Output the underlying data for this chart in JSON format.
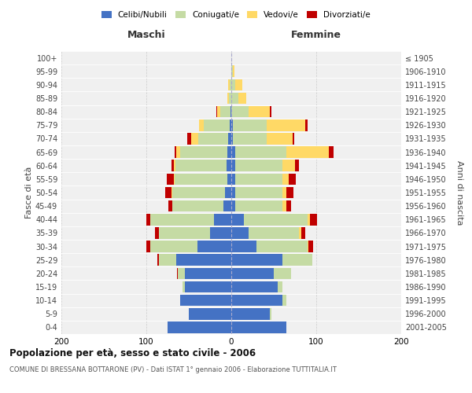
{
  "age_groups": [
    "0-4",
    "5-9",
    "10-14",
    "15-19",
    "20-24",
    "25-29",
    "30-34",
    "35-39",
    "40-44",
    "45-49",
    "50-54",
    "55-59",
    "60-64",
    "65-69",
    "70-74",
    "75-79",
    "80-84",
    "85-89",
    "90-94",
    "95-99",
    "100+"
  ],
  "birth_years": [
    "2001-2005",
    "1996-2000",
    "1991-1995",
    "1986-1990",
    "1981-1985",
    "1976-1980",
    "1971-1975",
    "1966-1970",
    "1961-1965",
    "1956-1960",
    "1951-1955",
    "1946-1950",
    "1941-1945",
    "1936-1940",
    "1931-1935",
    "1926-1930",
    "1921-1925",
    "1916-1920",
    "1911-1915",
    "1906-1910",
    "≤ 1905"
  ],
  "male": {
    "celibi": [
      75,
      50,
      60,
      55,
      55,
      65,
      40,
      25,
      20,
      9,
      7,
      5,
      6,
      5,
      4,
      2,
      1,
      0,
      0,
      0,
      0
    ],
    "coniugati": [
      0,
      0,
      0,
      2,
      8,
      20,
      55,
      60,
      75,
      60,
      62,
      62,
      60,
      55,
      35,
      30,
      12,
      3,
      2,
      0,
      0
    ],
    "vedovi": [
      0,
      0,
      0,
      0,
      0,
      0,
      0,
      0,
      0,
      0,
      1,
      1,
      2,
      5,
      8,
      6,
      4,
      2,
      2,
      0,
      0
    ],
    "divorziati": [
      0,
      0,
      0,
      0,
      1,
      2,
      5,
      5,
      5,
      5,
      8,
      8,
      2,
      2,
      5,
      0,
      1,
      0,
      0,
      0,
      0
    ]
  },
  "female": {
    "nubili": [
      65,
      45,
      60,
      55,
      50,
      60,
      30,
      20,
      15,
      5,
      5,
      5,
      5,
      5,
      2,
      2,
      0,
      0,
      0,
      0,
      0
    ],
    "coniugate": [
      0,
      2,
      5,
      5,
      20,
      35,
      60,
      60,
      75,
      55,
      55,
      55,
      55,
      60,
      40,
      40,
      20,
      8,
      5,
      2,
      0
    ],
    "vedove": [
      0,
      0,
      0,
      0,
      0,
      0,
      1,
      2,
      3,
      5,
      5,
      8,
      15,
      50,
      30,
      45,
      25,
      10,
      8,
      2,
      0
    ],
    "divorziate": [
      0,
      0,
      0,
      0,
      0,
      0,
      5,
      5,
      8,
      5,
      8,
      8,
      5,
      5,
      2,
      3,
      2,
      0,
      0,
      0,
      0
    ]
  },
  "colors": {
    "celibi_nubili": "#4472C4",
    "coniugati": "#C5DBA4",
    "vedovi": "#FFD966",
    "divorziati": "#C00000"
  },
  "xlim": 200,
  "title": "Popolazione per età, sesso e stato civile - 2006",
  "subtitle": "COMUNE DI BRESSANA BOTTARONE (PV) - Dati ISTAT 1° gennaio 2006 - Elaborazione TUTTITALIA.IT",
  "ylabel_left": "Fasce di età",
  "ylabel_right": "Anni di nascita",
  "xlabel_left": "Maschi",
  "xlabel_right": "Femmine",
  "bg_color": "#f0f0f0",
  "legend_labels": [
    "Celibi/Nubili",
    "Coniugati/e",
    "Vedovi/e",
    "Divorziati/e"
  ]
}
